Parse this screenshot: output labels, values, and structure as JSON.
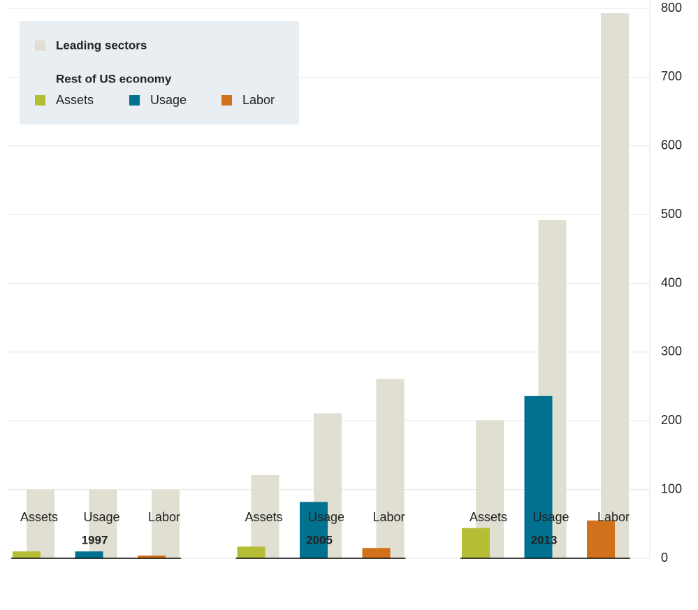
{
  "chart_data": {
    "type": "bar",
    "groups": [
      "1997",
      "2005",
      "2013"
    ],
    "categories": [
      "Assets",
      "Usage",
      "Labor",
      "Assets",
      "Usage",
      "Labor",
      "Assets",
      "Usage",
      "Labor"
    ],
    "series": [
      {
        "name": "Leading sectors",
        "color": "#e0dfd2",
        "values": [
          100,
          100,
          100,
          121,
          211,
          261,
          201,
          492,
          793
        ]
      },
      {
        "name": "Rest of US economy",
        "colors": [
          "#b5bd35",
          "#00728f",
          "#d2711c",
          "#b5bd35",
          "#00728f",
          "#d2711c",
          "#b5bd35",
          "#00728f",
          "#d2711c"
        ],
        "values": [
          10,
          10,
          4,
          17,
          82,
          15,
          44,
          236,
          55
        ]
      }
    ],
    "ylim": [
      0,
      800
    ],
    "yticks": [
      0,
      100,
      200,
      300,
      400,
      500,
      600,
      700,
      800
    ],
    "grid": true,
    "y_axis_side": "right"
  }
}
